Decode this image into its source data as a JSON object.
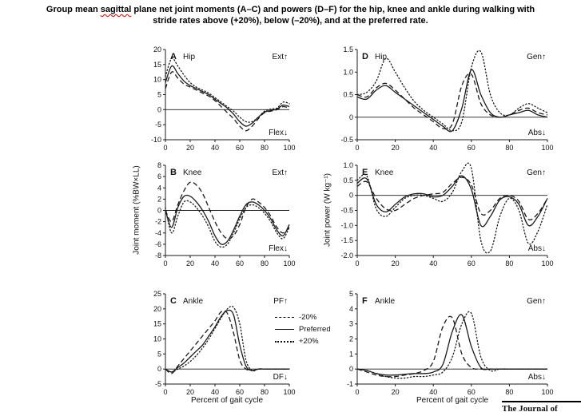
{
  "caption": {
    "line1_pre": "Group mean ",
    "line1_word": "sagittal",
    "line1_post": " plane net joint moments (A–C) and powers (D–F) for the hip, knee and ankle during walking with",
    "line2": "stride rates above (+20%), below (–20%), and at the preferred rate."
  },
  "axis_labels": {
    "moment_y": "Joint moment (%BW×LL)",
    "power_y": "Joint power (W kg⁻¹)",
    "x": "Percent of gait cycle"
  },
  "legend": {
    "items": [
      {
        "style": "dashed",
        "label": "-20%"
      },
      {
        "style": "solid",
        "label": "Preferred"
      },
      {
        "style": "dotted",
        "label": "+20%"
      }
    ]
  },
  "footer": {
    "journal_text": "The Journal of"
  },
  "colors": {
    "line": "#1a1a1a",
    "squiggle": "#cc0000"
  },
  "chart_data": [
    {
      "type": "line",
      "letter": "A",
      "title": "Hip",
      "top_label": "Ext↑",
      "bottom_label": "Flex↓",
      "xlim": [
        0,
        100
      ],
      "xticks": [
        0,
        20,
        40,
        60,
        80,
        100
      ],
      "ylim": [
        -10,
        20
      ],
      "yticks": [
        {
          "v": 20,
          "t": "20"
        },
        {
          "v": 15,
          "t": "15"
        },
        {
          "v": 10,
          "t": "10"
        },
        {
          "v": 5,
          "t": "5"
        },
        {
          "v": 0,
          "t": "0"
        },
        {
          "v": -5,
          "t": "-5"
        },
        {
          "v": -10,
          "t": "-10"
        }
      ],
      "x": [
        0,
        5,
        10,
        15,
        20,
        25,
        30,
        35,
        40,
        45,
        50,
        55,
        60,
        65,
        70,
        75,
        80,
        85,
        90,
        95,
        100
      ],
      "series": [
        {
          "name": "-20%",
          "style": "dashed",
          "y": [
            7,
            12.5,
            10.5,
            8.5,
            7.5,
            6.5,
            5.5,
            4.5,
            3,
            1,
            -1,
            -3,
            -5.5,
            -7,
            -5.5,
            -3,
            -1,
            -0.5,
            0,
            1,
            0.5
          ]
        },
        {
          "name": "Preferred",
          "style": "solid",
          "y": [
            9,
            14.5,
            12,
            9.5,
            8,
            7,
            6,
            5,
            3.5,
            2,
            0.5,
            -1.5,
            -4,
            -5.5,
            -4.5,
            -2.5,
            -0.8,
            -0.3,
            0.2,
            1.5,
            1
          ]
        },
        {
          "name": "+20%",
          "style": "dotted",
          "y": [
            11,
            17,
            14.5,
            11.5,
            9,
            7.5,
            6.5,
            5.5,
            4,
            2.5,
            1,
            -0.5,
            -2.5,
            -4,
            -4,
            -2.5,
            -0.5,
            0.2,
            0.5,
            2.5,
            2
          ]
        }
      ]
    },
    {
      "type": "line",
      "letter": "B",
      "title": "Knee",
      "top_label": "Ext↑",
      "bottom_label": "Flex↓",
      "xlim": [
        0,
        100
      ],
      "xticks": [
        0,
        20,
        40,
        60,
        80,
        100
      ],
      "ylim": [
        -8,
        8
      ],
      "yticks": [
        {
          "v": 8,
          "t": "8"
        },
        {
          "v": 6,
          "t": "6"
        },
        {
          "v": 4,
          "t": "4"
        },
        {
          "v": 2,
          "t": "2"
        },
        {
          "v": 0,
          "t": "0"
        },
        {
          "v": -2,
          "t": "-2"
        },
        {
          "v": -4,
          "t": "-4"
        },
        {
          "v": -6,
          "t": "-6"
        },
        {
          "v": -8,
          "t": "-8"
        }
      ],
      "x": [
        0,
        5,
        10,
        15,
        20,
        25,
        30,
        35,
        40,
        45,
        50,
        55,
        60,
        65,
        70,
        75,
        80,
        85,
        90,
        95,
        100
      ],
      "series": [
        {
          "name": "-20%",
          "style": "dashed",
          "y": [
            0,
            -2,
            1,
            3.5,
            5,
            4.5,
            3,
            0.5,
            -2,
            -4,
            -5,
            -4.5,
            -2.5,
            0.5,
            2,
            1.5,
            0.5,
            -1,
            -3,
            -4,
            -3
          ]
        },
        {
          "name": "Preferred",
          "style": "solid",
          "y": [
            0,
            -3,
            0.5,
            2.5,
            2.5,
            1.5,
            0,
            -2,
            -4.5,
            -6,
            -5.5,
            -3.5,
            -1,
            1,
            1.5,
            1,
            0,
            -1.5,
            -3.5,
            -4.5,
            -2.5
          ]
        },
        {
          "name": "+20%",
          "style": "dotted",
          "y": [
            0.5,
            -4,
            -1,
            1.5,
            1.5,
            0.5,
            -1,
            -3,
            -5.5,
            -6.5,
            -6,
            -4,
            -1.5,
            0.5,
            1,
            0.5,
            -0.5,
            -2,
            -4,
            -5,
            -3
          ]
        }
      ]
    },
    {
      "type": "line",
      "letter": "C",
      "title": "Ankle",
      "top_label": "PF↑",
      "bottom_label": "DF↓",
      "xlim": [
        0,
        100
      ],
      "xticks": [
        0,
        20,
        40,
        60,
        80,
        100
      ],
      "ylim": [
        -5,
        25
      ],
      "yticks": [
        {
          "v": 25,
          "t": "25"
        },
        {
          "v": 20,
          "t": "20"
        },
        {
          "v": 15,
          "t": "15"
        },
        {
          "v": 10,
          "t": "10"
        },
        {
          "v": 5,
          "t": "5"
        },
        {
          "v": 0,
          "t": "0"
        },
        {
          "v": -5,
          "t": "-5"
        }
      ],
      "x": [
        0,
        5,
        10,
        15,
        20,
        25,
        30,
        35,
        40,
        45,
        50,
        55,
        60,
        65,
        70,
        75,
        80,
        85,
        90,
        95,
        100
      ],
      "series": [
        {
          "name": "-20%",
          "style": "dashed",
          "y": [
            0,
            -1.5,
            1,
            3.5,
            6,
            8.5,
            11,
            13.5,
            16,
            19,
            18.5,
            12,
            3,
            0,
            -0.5,
            0,
            0,
            0,
            0,
            0,
            0
          ]
        },
        {
          "name": "Preferred",
          "style": "solid",
          "y": [
            0,
            -1,
            0.5,
            2,
            4,
            6,
            8,
            11,
            14,
            17.5,
            19.5,
            18,
            8,
            1,
            -0.5,
            0,
            0,
            0,
            0,
            0,
            0
          ]
        },
        {
          "name": "+20%",
          "style": "dotted",
          "y": [
            0,
            -1,
            0,
            1,
            2.5,
            4.5,
            7,
            10,
            13.5,
            17,
            20,
            20.5,
            15,
            3,
            -0.5,
            0,
            0,
            0,
            0,
            0,
            0
          ]
        }
      ]
    },
    {
      "type": "line",
      "letter": "D",
      "title": "Hip",
      "top_label": "Gen↑",
      "bottom_label": "Abs↓",
      "xlim": [
        0,
        100
      ],
      "xticks": [
        0,
        20,
        40,
        60,
        80,
        100
      ],
      "ylim": [
        -0.5,
        1.5
      ],
      "yticks": [
        {
          "v": 1.5,
          "t": "1.5"
        },
        {
          "v": 1,
          "t": "1.0"
        },
        {
          "v": 0.5,
          "t": "0.5"
        },
        {
          "v": 0,
          "t": "0"
        },
        {
          "v": -0.5,
          "t": "-0.5"
        }
      ],
      "x": [
        0,
        5,
        10,
        15,
        20,
        25,
        30,
        35,
        40,
        45,
        50,
        55,
        60,
        65,
        70,
        75,
        80,
        85,
        90,
        95,
        100
      ],
      "series": [
        {
          "name": "-20%",
          "style": "dashed",
          "y": [
            0.5,
            0.45,
            0.65,
            0.75,
            0.6,
            0.4,
            0.2,
            0.05,
            -0.1,
            -0.25,
            -0.15,
            0.7,
            0.95,
            0.3,
            0.05,
            0,
            0.05,
            0.15,
            0.2,
            0.1,
            0.05
          ]
        },
        {
          "name": "Preferred",
          "style": "solid",
          "y": [
            0.45,
            0.4,
            0.6,
            0.7,
            0.55,
            0.4,
            0.25,
            0.1,
            -0.05,
            -0.2,
            -0.3,
            0.2,
            1.05,
            0.5,
            0.1,
            0,
            0.05,
            0.1,
            0.15,
            0.05,
            0
          ]
        },
        {
          "name": "+20%",
          "style": "dotted",
          "y": [
            0.5,
            0.55,
            0.8,
            1.3,
            1,
            0.65,
            0.35,
            0.15,
            0,
            -0.15,
            -0.3,
            -0.1,
            1.1,
            1.45,
            0.5,
            0.1,
            0.05,
            0.2,
            0.3,
            0.2,
            0.1
          ]
        }
      ]
    },
    {
      "type": "line",
      "letter": "E",
      "title": "Knee",
      "top_label": "Gen↑",
      "bottom_label": "Abs↓",
      "xlim": [
        0,
        100
      ],
      "xticks": [
        0,
        20,
        40,
        60,
        80,
        100
      ],
      "ylim": [
        -2,
        1
      ],
      "yticks": [
        {
          "v": 1,
          "t": "1.0"
        },
        {
          "v": 0.5,
          "t": "0.5"
        },
        {
          "v": 0,
          "t": "0"
        },
        {
          "v": -0.5,
          "t": "-0.5"
        },
        {
          "v": -1,
          "t": "-1.0"
        },
        {
          "v": -1.5,
          "t": "-1.5"
        },
        {
          "v": -2,
          "t": "-2.0"
        }
      ],
      "x": [
        0,
        5,
        10,
        15,
        20,
        25,
        30,
        35,
        40,
        45,
        50,
        55,
        60,
        65,
        70,
        75,
        80,
        85,
        90,
        95,
        100
      ],
      "series": [
        {
          "name": "-20%",
          "style": "dashed",
          "y": [
            0.3,
            0.45,
            -0.1,
            -0.45,
            -0.5,
            -0.3,
            -0.1,
            0,
            0.05,
            0.1,
            0.4,
            0.6,
            0.35,
            -0.6,
            -0.5,
            -0.1,
            0,
            -0.2,
            -0.8,
            -0.6,
            -0.1
          ]
        },
        {
          "name": "Preferred",
          "style": "solid",
          "y": [
            0.4,
            0.55,
            -0.3,
            -0.55,
            -0.3,
            -0.05,
            0.05,
            0.05,
            -0.05,
            0,
            0.3,
            0.65,
            0.2,
            -1,
            -0.7,
            -0.15,
            -0.05,
            -0.3,
            -1,
            -0.7,
            -0.1
          ]
        },
        {
          "name": "+20%",
          "style": "dotted",
          "y": [
            0.5,
            0.65,
            -0.45,
            -0.7,
            -0.4,
            -0.1,
            0,
            0,
            -0.1,
            -0.2,
            0.1,
            0.8,
            0.9,
            -1.5,
            -1.85,
            -0.7,
            -0.1,
            -0.5,
            -1.6,
            -1.2,
            -0.3
          ]
        }
      ]
    },
    {
      "type": "line",
      "letter": "F",
      "title": "Ankle",
      "top_label": "Gen↑",
      "bottom_label": "Abs↓",
      "xlim": [
        0,
        100
      ],
      "xticks": [
        0,
        20,
        40,
        60,
        80,
        100
      ],
      "ylim": [
        -1,
        5
      ],
      "yticks": [
        {
          "v": 5,
          "t": "5"
        },
        {
          "v": 4,
          "t": "4"
        },
        {
          "v": 3,
          "t": "3"
        },
        {
          "v": 2,
          "t": "2"
        },
        {
          "v": 1,
          "t": "1"
        },
        {
          "v": 0,
          "t": "0"
        },
        {
          "v": -1,
          "t": "-1"
        }
      ],
      "x": [
        0,
        5,
        10,
        15,
        20,
        25,
        30,
        35,
        40,
        45,
        50,
        55,
        60,
        65,
        70,
        75,
        80,
        85,
        90,
        95,
        100
      ],
      "series": [
        {
          "name": "-20%",
          "style": "dashed",
          "y": [
            0,
            -0.2,
            -0.4,
            -0.5,
            -0.5,
            -0.4,
            -0.3,
            -0.1,
            0.5,
            2.8,
            3.4,
            1,
            0.1,
            0,
            0,
            0,
            0,
            0,
            0,
            0,
            0
          ]
        },
        {
          "name": "Preferred",
          "style": "solid",
          "y": [
            0,
            -0.1,
            -0.3,
            -0.4,
            -0.4,
            -0.35,
            -0.3,
            -0.3,
            -0.2,
            0.3,
            2.5,
            3.6,
            1.5,
            0.1,
            0,
            0,
            0,
            0,
            0,
            0,
            0
          ]
        },
        {
          "name": "+20%",
          "style": "dotted",
          "y": [
            0,
            -0.1,
            -0.3,
            -0.5,
            -0.6,
            -0.6,
            -0.5,
            -0.5,
            -0.4,
            -0.2,
            0.8,
            3,
            3.7,
            0.8,
            -0.1,
            0,
            0,
            0,
            0,
            0,
            0
          ]
        }
      ]
    }
  ]
}
